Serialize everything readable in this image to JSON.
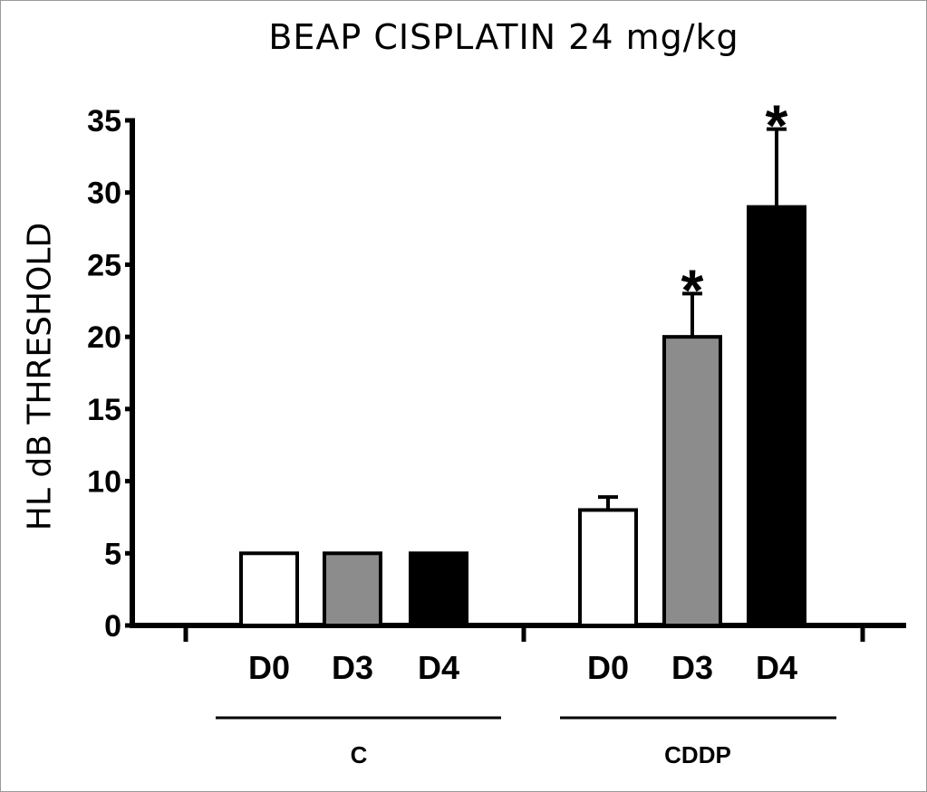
{
  "chart_data": {
    "type": "bar",
    "title": "BEAP CISPLATIN 24 mg/kg",
    "xlabel": "",
    "ylabel": "HL dB THRESHOLD",
    "ylim": [
      0,
      35
    ],
    "yticks": [
      "0",
      "5",
      "10",
      "15",
      "20",
      "25",
      "30",
      "35"
    ],
    "grid": false,
    "legend": "none",
    "groups": [
      {
        "name": "C",
        "bars": [
          {
            "label": "D0",
            "value": 5,
            "error": 0,
            "color": "#ffffff",
            "significant": false
          },
          {
            "label": "D3",
            "value": 5,
            "error": 0,
            "color": "#8c8c8c",
            "significant": false
          },
          {
            "label": "D4",
            "value": 5,
            "error": 0,
            "color": "#000000",
            "significant": false
          }
        ]
      },
      {
        "name": "CDDP",
        "bars": [
          {
            "label": "D0",
            "value": 8,
            "error": 0.9,
            "color": "#ffffff",
            "significant": false
          },
          {
            "label": "D3",
            "value": 20,
            "error": 3,
            "color": "#8c8c8c",
            "significant": true
          },
          {
            "label": "D4",
            "value": 29,
            "error": 5.4,
            "color": "#000000",
            "significant": true
          }
        ]
      }
    ],
    "significance_marker": "*"
  }
}
